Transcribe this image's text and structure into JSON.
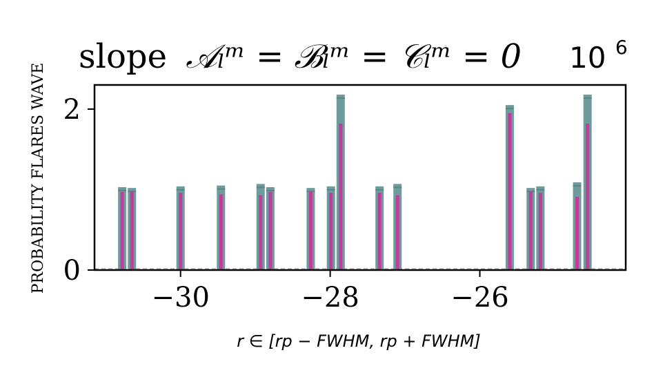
{
  "chart_data": {
    "type": "bar",
    "title_text": "slope",
    "title_math": "𝒜ₗᵐ = ℬₗᵐ = 𝒞ₗᵐ = 0",
    "multiplier": "10",
    "multiplier_exp": "6",
    "ylabel": "PROBABILITY FLARES WAVE",
    "xlabel": "r ∈ [rp − FWHM, rp + FWHM]",
    "xlim": [
      -31.15,
      -24.05
    ],
    "ylim": [
      0,
      2.3
    ],
    "x_ticks": [
      -30,
      -28,
      -26
    ],
    "x_tick_labels": [
      "−30",
      "−28",
      "−26"
    ],
    "y_ticks": [
      0,
      2
    ],
    "y_tick_labels": [
      "0",
      "2"
    ],
    "colors": {
      "outer": "#6e9b9b",
      "inner": "#c03d9c",
      "baseline": "#b0b0b0"
    },
    "series": [
      {
        "style": "outer",
        "x": [
          -30.78,
          -30.65,
          -30.0,
          -29.46,
          -28.93,
          -28.8,
          -28.26,
          -27.99,
          -27.86,
          -27.34,
          -27.1,
          -25.6,
          -25.32,
          -25.19,
          -24.7,
          -24.56
        ],
        "values": [
          1.03,
          1.02,
          1.04,
          1.05,
          1.07,
          1.03,
          1.02,
          1.04,
          2.18,
          1.04,
          1.07,
          2.05,
          1.02,
          1.04,
          1.09,
          2.18
        ]
      },
      {
        "style": "inner",
        "x": [
          -30.78,
          -30.65,
          -30.0,
          -29.46,
          -28.93,
          -28.8,
          -28.26,
          -27.99,
          -27.86,
          -27.34,
          -27.1,
          -25.6,
          -25.32,
          -25.19,
          -24.7,
          -24.56
        ],
        "values": [
          0.97,
          0.98,
          0.96,
          0.94,
          0.93,
          0.97,
          0.98,
          0.96,
          1.82,
          0.96,
          0.93,
          1.95,
          0.98,
          0.96,
          0.91,
          1.82
        ]
      }
    ]
  }
}
